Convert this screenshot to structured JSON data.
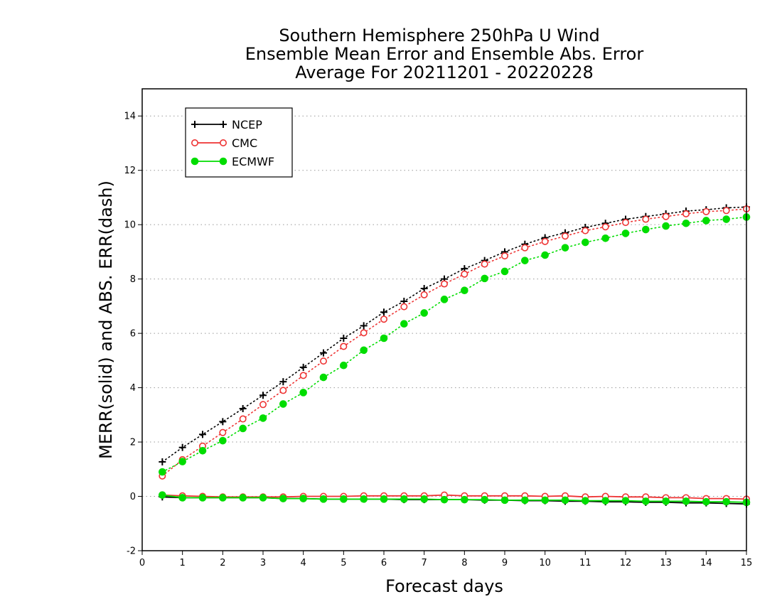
{
  "chart_data": {
    "type": "line",
    "title": [
      "Southern Hemisphere 250hPa U Wind",
      "Ensemble Mean Error and Ensemble Abs. Error",
      "Average For 20211201 - 20220228"
    ],
    "xlabel": "Forecast days",
    "ylabel": "MERR(solid) and ABS. ERR(dash)",
    "xlim": [
      0,
      15
    ],
    "ylim": [
      -2,
      15
    ],
    "xticks": [
      "0",
      "1",
      "2",
      "3",
      "4",
      "5",
      "6",
      "7",
      "8",
      "9",
      "10",
      "11",
      "12",
      "13",
      "14",
      "15"
    ],
    "yticks": [
      "-2",
      "0",
      "2",
      "4",
      "6",
      "8",
      "10",
      "12",
      "14"
    ],
    "grid": "horizontal dotted",
    "legend_position": "top-left",
    "x": [
      0.5,
      1,
      1.5,
      2,
      2.5,
      3,
      3.5,
      4,
      4.5,
      5,
      5.5,
      6,
      6.5,
      7,
      7.5,
      8,
      8.5,
      9,
      9.5,
      10,
      10.5,
      11,
      11.5,
      12,
      12.5,
      13,
      13.5,
      14,
      14.5,
      15
    ],
    "series": [
      {
        "name": "NCEP",
        "color": "#000000",
        "marker": "plus",
        "abs_err": [
          1.27,
          1.8,
          2.28,
          2.75,
          3.23,
          3.72,
          4.22,
          4.75,
          5.28,
          5.82,
          6.28,
          6.78,
          7.18,
          7.65,
          8.0,
          8.38,
          8.68,
          9.0,
          9.28,
          9.52,
          9.7,
          9.9,
          10.05,
          10.2,
          10.3,
          10.4,
          10.5,
          10.55,
          10.62,
          10.65
        ],
        "mean_err": [
          -0.02,
          -0.05,
          -0.05,
          -0.05,
          -0.05,
          -0.05,
          -0.08,
          -0.08,
          -0.1,
          -0.1,
          -0.1,
          -0.1,
          -0.12,
          -0.12,
          -0.12,
          -0.12,
          -0.14,
          -0.14,
          -0.16,
          -0.16,
          -0.18,
          -0.18,
          -0.2,
          -0.2,
          -0.22,
          -0.22,
          -0.24,
          -0.24,
          -0.26,
          -0.28
        ]
      },
      {
        "name": "CMC",
        "color": "#ee3333",
        "marker": "open-circle",
        "abs_err": [
          0.75,
          1.35,
          1.85,
          2.35,
          2.85,
          3.38,
          3.9,
          4.45,
          4.98,
          5.52,
          6.02,
          6.52,
          6.98,
          7.42,
          7.82,
          8.18,
          8.55,
          8.85,
          9.15,
          9.38,
          9.58,
          9.78,
          9.92,
          10.08,
          10.2,
          10.3,
          10.4,
          10.48,
          10.52,
          10.58
        ],
        "mean_err": [
          0.05,
          0.02,
          0.0,
          -0.02,
          -0.02,
          -0.02,
          -0.02,
          0.0,
          0.0,
          0.0,
          0.02,
          0.02,
          0.02,
          0.02,
          0.05,
          0.02,
          0.02,
          0.02,
          0.02,
          0.0,
          0.02,
          -0.02,
          0.0,
          -0.02,
          -0.02,
          -0.05,
          -0.05,
          -0.08,
          -0.08,
          -0.1
        ]
      },
      {
        "name": "ECMWF",
        "color": "#00dd00",
        "marker": "filled-circle",
        "abs_err": [
          0.9,
          1.28,
          1.68,
          2.05,
          2.5,
          2.88,
          3.4,
          3.82,
          4.38,
          4.82,
          5.38,
          5.82,
          6.35,
          6.75,
          7.25,
          7.58,
          8.02,
          8.28,
          8.68,
          8.88,
          9.15,
          9.35,
          9.5,
          9.68,
          9.82,
          9.95,
          10.05,
          10.15,
          10.2,
          10.28
        ],
        "mean_err": [
          0.05,
          -0.05,
          -0.05,
          -0.05,
          -0.05,
          -0.05,
          -0.08,
          -0.08,
          -0.1,
          -0.1,
          -0.1,
          -0.1,
          -0.1,
          -0.1,
          -0.12,
          -0.12,
          -0.12,
          -0.14,
          -0.14,
          -0.14,
          -0.14,
          -0.16,
          -0.16,
          -0.16,
          -0.18,
          -0.18,
          -0.18,
          -0.2,
          -0.2,
          -0.22
        ]
      }
    ]
  }
}
